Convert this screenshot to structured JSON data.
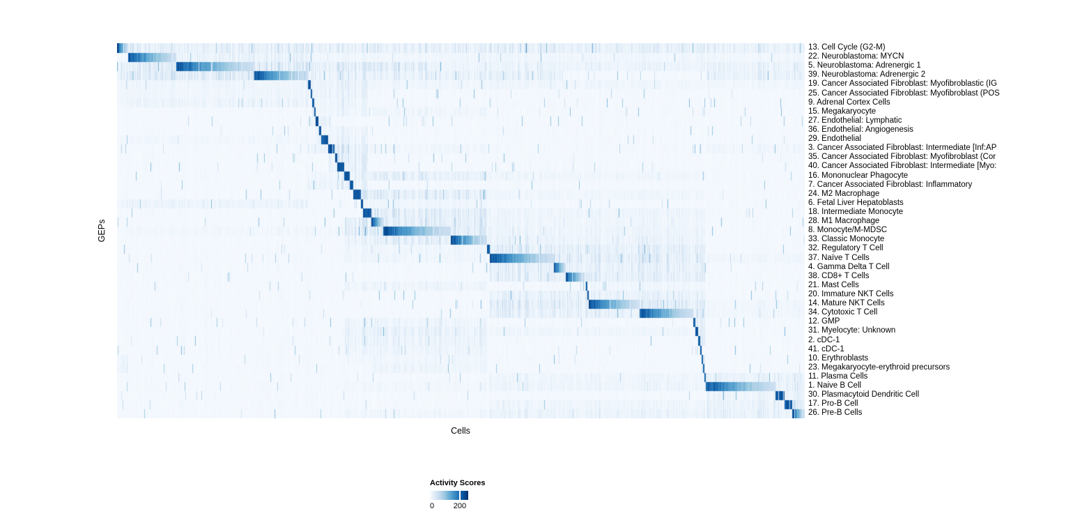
{
  "chart_data": {
    "type": "heatmap",
    "xlabel": "Cells",
    "ylabel": "GEPs",
    "grid": false,
    "legend_position": "bottom-left",
    "color_scale": {
      "title": "Activity Scores",
      "min": 0,
      "tick_value": 200,
      "domain_max": 256,
      "tick_labels": [
        "0",
        "200"
      ]
    },
    "colormap": [
      [
        0.0,
        "#f7fbff"
      ],
      [
        0.125,
        "#deebf7"
      ],
      [
        0.25,
        "#c6dbef"
      ],
      [
        0.375,
        "#9ecae1"
      ],
      [
        0.5,
        "#6baed6"
      ],
      [
        0.625,
        "#4292c6"
      ],
      [
        0.75,
        "#2171b5"
      ],
      [
        0.875,
        "#08519c"
      ],
      [
        1.0,
        "#08306b"
      ]
    ],
    "n_columns": 987,
    "rows": [
      {
        "label": "13. Cell Cycle (G2-M)",
        "block": [
          0,
          16
        ],
        "peak": 235,
        "affinity": [
          [
            16,
            987,
            30
          ]
        ]
      },
      {
        "label": "22. Neuroblastoma: MYCN",
        "block": [
          16,
          85
        ],
        "peak": 235,
        "affinity": [
          [
            85,
            274,
            22
          ],
          [
            274,
            987,
            8
          ]
        ]
      },
      {
        "label": "5. Neuroblastoma: Adrenergic 1",
        "block": [
          85,
          197
        ],
        "peak": 235,
        "affinity": [
          [
            0,
            85,
            40
          ],
          [
            197,
            445,
            42
          ],
          [
            445,
            845,
            16
          ],
          [
            845,
            987,
            26
          ]
        ]
      },
      {
        "label": "39. Neuroblastoma: Adrenergic 2",
        "block": [
          197,
          274
        ],
        "peak": 235,
        "affinity": [
          [
            0,
            197,
            46
          ],
          [
            274,
            640,
            26
          ],
          [
            845,
            987,
            32
          ]
        ]
      },
      {
        "label": "19. Cancer Associated Fibroblast: Myofibroblastic (IG",
        "block": [
          274,
          278
        ],
        "peak": 235,
        "affinity": [
          [
            278,
            360,
            24
          ],
          [
            0,
            274,
            10
          ],
          [
            360,
            987,
            8
          ]
        ]
      },
      {
        "label": "25. Cancer Associated Fibroblast: Myofibroblast (POS",
        "block": [
          278,
          280
        ],
        "peak": 235,
        "affinity": [
          [
            274,
            360,
            20
          ],
          [
            0,
            274,
            8
          ]
        ]
      },
      {
        "label": "9. Adrenal Cortex Cells",
        "block": [
          280,
          283
        ],
        "peak": 235,
        "affinity": [
          [
            0,
            274,
            14
          ],
          [
            283,
            360,
            12
          ]
        ]
      },
      {
        "label": "15. Megakaryocyte",
        "block": [
          283,
          285
        ],
        "peak": 235,
        "affinity": [
          [
            283,
            360,
            12
          ],
          [
            839,
            845,
            25
          ],
          [
            365,
            532,
            10
          ]
        ]
      },
      {
        "label": "27. Endothelial: Lymphatic",
        "block": [
          285,
          289
        ],
        "peak": 235,
        "affinity": [
          [
            289,
            307,
            36
          ],
          [
            274,
            285,
            14
          ]
        ]
      },
      {
        "label": "36. Endothelial: Angiogenesis",
        "block": [
          289,
          293
        ],
        "peak": 235,
        "affinity": [
          [
            285,
            289,
            34
          ],
          [
            293,
            360,
            14
          ]
        ]
      },
      {
        "label": "29. Endothelial",
        "block": [
          293,
          303
        ],
        "peak": 235,
        "affinity": [
          [
            285,
            293,
            40
          ],
          [
            303,
            360,
            18
          ],
          [
            0,
            274,
            6
          ]
        ]
      },
      {
        "label": "3. Cancer Associated Fibroblast: Intermediate [Inf:AP",
        "block": [
          303,
          313
        ],
        "peak": 235,
        "affinity": [
          [
            274,
            303,
            30
          ],
          [
            313,
            360,
            40
          ],
          [
            845,
            987,
            10
          ],
          [
            360,
            532,
            8
          ]
        ]
      },
      {
        "label": "35. Cancer Associated Fibroblast: Myofibroblast (Cor",
        "block": [
          313,
          316
        ],
        "peak": 235,
        "affinity": [
          [
            303,
            313,
            30
          ],
          [
            316,
            360,
            34
          ]
        ]
      },
      {
        "label": "40. Cancer Associated Fibroblast: Intermediate [Myo:",
        "block": [
          316,
          326
        ],
        "peak": 235,
        "affinity": [
          [
            303,
            316,
            40
          ],
          [
            326,
            360,
            30
          ]
        ]
      },
      {
        "label": "16. Mononuclear Phagocyte",
        "block": [
          326,
          334
        ],
        "peak": 235,
        "affinity": [
          [
            334,
            532,
            30
          ],
          [
            274,
            326,
            12
          ],
          [
            532,
            845,
            8
          ]
        ]
      },
      {
        "label": "7. Cancer Associated Fibroblast: Inflammatory",
        "block": [
          334,
          339
        ],
        "peak": 235,
        "affinity": [
          [
            303,
            334,
            26
          ],
          [
            274,
            303,
            18
          ],
          [
            339,
            360,
            20
          ]
        ]
      },
      {
        "label": "24. M2 Macrophage",
        "block": [
          339,
          350
        ],
        "peak": 235,
        "affinity": [
          [
            350,
            532,
            36
          ],
          [
            532,
            845,
            8
          ]
        ]
      },
      {
        "label": "6. Fetal Liver Hepatoblasts",
        "block": [
          350,
          353
        ],
        "peak": 235,
        "affinity": [
          [
            0,
            274,
            14
          ],
          [
            353,
            532,
            10
          ]
        ]
      },
      {
        "label": "18. Intermediate Monocyte",
        "block": [
          353,
          365
        ],
        "peak": 235,
        "affinity": [
          [
            365,
            532,
            40
          ],
          [
            532,
            845,
            12
          ]
        ]
      },
      {
        "label": "28. M1 Macrophage",
        "block": [
          365,
          382
        ],
        "peak": 235,
        "affinity": [
          [
            326,
            365,
            40
          ],
          [
            382,
            532,
            40
          ],
          [
            532,
            845,
            10
          ]
        ]
      },
      {
        "label": "8. Monocyte/M-MDSC",
        "block": [
          382,
          479
        ],
        "peak": 235,
        "affinity": [
          [
            326,
            382,
            46
          ],
          [
            479,
            532,
            44
          ],
          [
            532,
            845,
            14
          ],
          [
            0,
            326,
            6
          ]
        ]
      },
      {
        "label": "33. Classic Monocyte",
        "block": [
          479,
          531
        ],
        "peak": 235,
        "affinity": [
          [
            382,
            479,
            36
          ],
          [
            531,
            845,
            18
          ],
          [
            326,
            382,
            20
          ]
        ]
      },
      {
        "label": "32. Regulatory T Cell",
        "block": [
          531,
          535
        ],
        "peak": 235,
        "affinity": [
          [
            535,
            845,
            32
          ],
          [
            326,
            531,
            10
          ]
        ]
      },
      {
        "label": "37. Naïve T Cells",
        "block": [
          535,
          627
        ],
        "peak": 235,
        "affinity": [
          [
            627,
            845,
            38
          ],
          [
            326,
            531,
            10
          ],
          [
            845,
            987,
            10
          ]
        ]
      },
      {
        "label": "4. Gamma Delta T Cell",
        "block": [
          627,
          644
        ],
        "peak": 235,
        "affinity": [
          [
            535,
            627,
            32
          ],
          [
            644,
            845,
            28
          ]
        ]
      },
      {
        "label": "38. CD8+ T Cells",
        "block": [
          644,
          672
        ],
        "peak": 235,
        "affinity": [
          [
            535,
            644,
            28
          ],
          [
            672,
            845,
            32
          ]
        ]
      },
      {
        "label": "21. Mast Cells",
        "block": [
          672,
          675
        ],
        "peak": 235,
        "affinity": [
          [
            326,
            532,
            12
          ],
          [
            675,
            845,
            8
          ]
        ]
      },
      {
        "label": "20. Immature NKT Cells",
        "block": [
          675,
          677
        ],
        "peak": 235,
        "affinity": [
          [
            535,
            675,
            24
          ],
          [
            677,
            845,
            24
          ]
        ]
      },
      {
        "label": "14. Mature NKT Cells",
        "block": [
          677,
          750
        ],
        "peak": 235,
        "affinity": [
          [
            535,
            677,
            34
          ],
          [
            750,
            845,
            38
          ],
          [
            845,
            987,
            8
          ]
        ]
      },
      {
        "label": "34. Cytotoxic T Cell",
        "block": [
          750,
          827
        ],
        "peak": 235,
        "affinity": [
          [
            535,
            750,
            28
          ],
          [
            827,
            845,
            34
          ],
          [
            845,
            987,
            8
          ]
        ]
      },
      {
        "label": "12. GMP",
        "block": [
          827,
          830
        ],
        "peak": 235,
        "affinity": [
          [
            326,
            532,
            14
          ],
          [
            830,
            845,
            26
          ]
        ]
      },
      {
        "label": "31. Myelocyte: Unknown",
        "block": [
          830,
          834
        ],
        "peak": 235,
        "affinity": [
          [
            326,
            532,
            24
          ],
          [
            834,
            845,
            24
          ],
          [
            535,
            845,
            8
          ]
        ]
      },
      {
        "label": "2. cDC-1",
        "block": [
          834,
          837
        ],
        "peak": 235,
        "affinity": [
          [
            326,
            532,
            18
          ],
          [
            837,
            845,
            28
          ]
        ]
      },
      {
        "label": "41. cDC-1",
        "block": [
          837,
          839
        ],
        "peak": 235,
        "affinity": [
          [
            326,
            532,
            14
          ],
          [
            830,
            837,
            22
          ]
        ]
      },
      {
        "label": "10. Erythroblasts",
        "block": [
          839,
          841
        ],
        "peak": 235,
        "affinity": [
          [
            0,
            16,
            18
          ],
          [
            841,
            845,
            28
          ],
          [
            326,
            532,
            8
          ]
        ]
      },
      {
        "label": "23. Megakaryocyte-erythroid precursors",
        "block": [
          841,
          843
        ],
        "peak": 235,
        "affinity": [
          [
            0,
            16,
            22
          ],
          [
            839,
            841,
            32
          ],
          [
            365,
            532,
            12
          ]
        ]
      },
      {
        "label": "11. Plasma Cells",
        "block": [
          843,
          845
        ],
        "peak": 235,
        "affinity": [
          [
            845,
            987,
            28
          ],
          [
            535,
            845,
            10
          ]
        ]
      },
      {
        "label": "1. Naive B Cell",
        "block": [
          845,
          945
        ],
        "peak": 235,
        "affinity": [
          [
            843,
            845,
            36
          ],
          [
            945,
            987,
            32
          ],
          [
            535,
            845,
            12
          ],
          [
            326,
            532,
            6
          ]
        ]
      },
      {
        "label": "30. Plasmacytoid Dendritic Cell",
        "block": [
          945,
          958
        ],
        "peak": 235,
        "affinity": [
          [
            845,
            945,
            18
          ],
          [
            958,
            987,
            22
          ]
        ]
      },
      {
        "label": "17. Pro-B Cell",
        "block": [
          958,
          969
        ],
        "peak": 235,
        "affinity": [
          [
            845,
            958,
            24
          ],
          [
            969,
            987,
            40
          ],
          [
            535,
            845,
            10
          ]
        ]
      },
      {
        "label": "26. Pre-B Cells",
        "block": [
          969,
          987
        ],
        "peak": 235,
        "affinity": [
          [
            845,
            969,
            30
          ],
          [
            535,
            845,
            16
          ],
          [
            326,
            532,
            8
          ]
        ]
      }
    ]
  }
}
